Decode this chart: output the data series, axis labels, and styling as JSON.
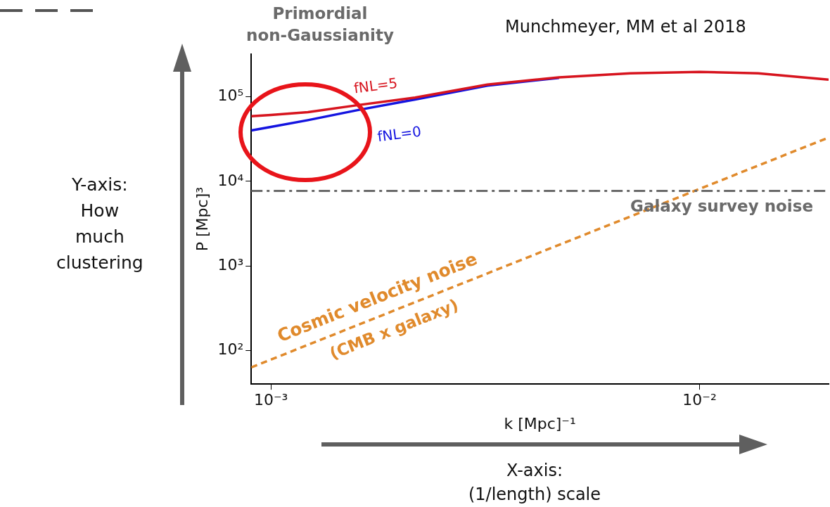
{
  "chart_data": {
    "type": "line",
    "xlabel": "k [Mpc]⁻¹",
    "ylabel": "P [Mpc]³",
    "log": "xy",
    "grid": false,
    "legend": false,
    "marker": "none",
    "xlim": [
      0.0009,
      0.02
    ],
    "ylim": [
      40,
      320000
    ],
    "xticks": [
      {
        "value": 0.001,
        "label": "10⁻³"
      },
      {
        "value": 0.01,
        "label": "10⁻²"
      }
    ],
    "yticks": [
      {
        "value": 100,
        "label": "10²"
      },
      {
        "value": 1000,
        "label": "10³"
      },
      {
        "value": 10000,
        "label": "10⁴"
      },
      {
        "value": 100000,
        "label": "10⁵"
      }
    ],
    "series": [
      {
        "name": "fNL=5",
        "color": "#d7141e",
        "line_style": "solid",
        "x": [
          0.0009,
          0.001,
          0.00122,
          0.0016,
          0.00217,
          0.0032,
          0.0047,
          0.0069,
          0.01,
          0.0137,
          0.02
        ],
        "values": [
          59000,
          61000,
          66000,
          80000,
          98000,
          140000,
          170000,
          190000,
          197000,
          190000,
          160000
        ]
      },
      {
        "name": "fNL=0",
        "color": "#1414e0",
        "line_style": "solid",
        "x": [
          0.0009,
          0.001,
          0.00122,
          0.0016,
          0.00217,
          0.0032,
          0.0047
        ],
        "values": [
          40000,
          44000,
          53000,
          70000,
          93000,
          136000,
          168000
        ]
      },
      {
        "name": "Cosmic velocity noise",
        "color": "#e08a2c",
        "line_style": "dashed",
        "x": [
          0.0009,
          0.02
        ],
        "values": [
          63,
          33000
        ]
      }
    ],
    "ref_lines": [
      {
        "axis": "y",
        "value": 7700,
        "label": "Galaxy survey noise",
        "color": "#6a6a6a",
        "line_style": "dashed"
      }
    ],
    "annotations": [
      "Primordial non-Gaussianity",
      "Munchmeyer, MM et al 2018",
      "Y-axis: How much clustering",
      "X-axis: (1/length) scale",
      "(CMB x galaxy)"
    ]
  }
}
